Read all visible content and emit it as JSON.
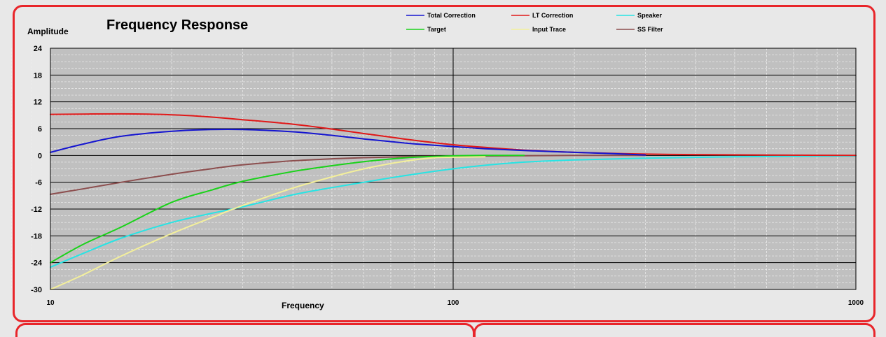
{
  "chart_data": {
    "type": "line",
    "title": "Frequency Response",
    "xlabel": "Frequency",
    "ylabel": "Amplitude",
    "xscale": "log",
    "xlim": [
      10,
      1000
    ],
    "ylim": [
      -30,
      24
    ],
    "xticks": [
      10,
      100,
      1000
    ],
    "xtick_labels": [
      "10",
      "100",
      "1000"
    ],
    "yticks": [
      24,
      18,
      12,
      6,
      0,
      -6,
      -12,
      -18,
      -24,
      -30
    ],
    "ytick_labels": [
      "24",
      "18",
      "12",
      "6",
      "0",
      "-6",
      "-12",
      "-18",
      "-24",
      "-30"
    ],
    "grid": true,
    "plot_background": "#c0c0c0",
    "legend_position": "top",
    "series": [
      {
        "name": "Total Correction",
        "color": "#1515d0",
        "x": [
          10,
          12,
          15,
          20,
          25,
          30,
          40,
          50,
          60,
          70,
          80,
          100,
          120,
          150,
          200,
          250,
          300
        ],
        "y": [
          0.7,
          2.5,
          4.3,
          5.4,
          5.8,
          5.8,
          5.3,
          4.5,
          3.7,
          3.1,
          2.6,
          2.0,
          1.5,
          1.1,
          0.7,
          0.4,
          0.1
        ]
      },
      {
        "name": "LT Correction",
        "color": "#e01818",
        "x": [
          10,
          15,
          20,
          25,
          30,
          40,
          50,
          60,
          70,
          80,
          100,
          120,
          150,
          200,
          300,
          400,
          600,
          1000
        ],
        "y": [
          9.2,
          9.3,
          9.1,
          8.6,
          8.0,
          7.0,
          5.9,
          4.9,
          4.1,
          3.4,
          2.4,
          1.8,
          1.2,
          0.7,
          0.3,
          0.2,
          0.1,
          0.0
        ]
      },
      {
        "name": "Speaker",
        "color": "#27e4e4",
        "x": [
          10,
          12,
          15,
          20,
          25,
          30,
          40,
          50,
          60,
          70,
          80,
          100,
          120,
          150,
          200,
          300,
          500,
          1000
        ],
        "y": [
          -25,
          -22,
          -18.5,
          -15,
          -13,
          -11.5,
          -8.8,
          -7.2,
          -6.0,
          -5.0,
          -4.2,
          -3.0,
          -2.2,
          -1.5,
          -1.0,
          -0.6,
          -0.3,
          -0.1
        ]
      },
      {
        "name": "Target",
        "color": "#1ad21a",
        "x": [
          10,
          12,
          15,
          20,
          25,
          30,
          40,
          50,
          60,
          70,
          80,
          100,
          120,
          150
        ],
        "y": [
          -24,
          -20,
          -16,
          -10.5,
          -7.8,
          -5.8,
          -3.6,
          -2.3,
          -1.4,
          -0.8,
          -0.4,
          -0.1,
          0.0,
          0.0
        ]
      },
      {
        "name": "Input Trace",
        "color": "#f3ef9b",
        "x": [
          10,
          12,
          15,
          20,
          25,
          30,
          40,
          50,
          60,
          70,
          80,
          90,
          100,
          120
        ],
        "y": [
          -30,
          -26.8,
          -22.5,
          -17.5,
          -14,
          -11.2,
          -7.3,
          -4.8,
          -3.0,
          -1.8,
          -1.0,
          -0.5,
          -0.4,
          -0.3
        ]
      },
      {
        "name": "SS Filter",
        "color": "#8c4e4e",
        "x": [
          10,
          12,
          15,
          20,
          25,
          30,
          40,
          50,
          60,
          70,
          80,
          100,
          150,
          200,
          300
        ],
        "y": [
          -8.7,
          -7.5,
          -6.0,
          -4.2,
          -3.0,
          -2.1,
          -1.2,
          -0.75,
          -0.5,
          -0.35,
          -0.25,
          -0.15,
          -0.05,
          0.0,
          0.0
        ]
      }
    ]
  }
}
